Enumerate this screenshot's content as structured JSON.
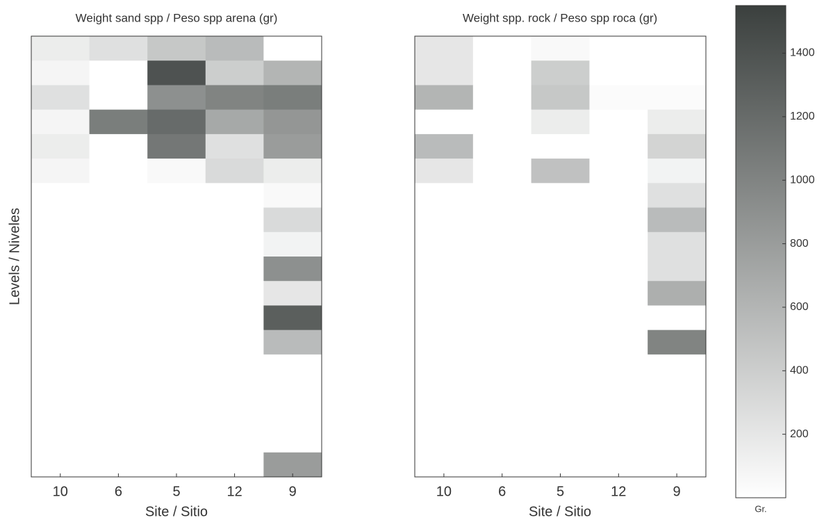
{
  "chart_data": [
    {
      "type": "heatmap",
      "title": "Weight sand spp / Peso spp arena (gr)",
      "xlabel": "Site / Sitio",
      "ylabel": "Levels / Niveles",
      "categories": [
        "10",
        "6",
        "5",
        "12",
        "9"
      ],
      "z": [
        [
          150,
          250,
          450,
          550,
          0
        ],
        [
          80,
          0,
          1400,
          400,
          600
        ],
        [
          250,
          0,
          900,
          1000,
          1050
        ],
        [
          80,
          1050,
          1200,
          700,
          850
        ],
        [
          150,
          0,
          1100,
          250,
          800
        ],
        [
          80,
          0,
          50,
          300,
          150
        ],
        [
          0,
          0,
          0,
          0,
          50
        ],
        [
          0,
          0,
          0,
          0,
          300
        ],
        [
          0,
          0,
          0,
          0,
          100
        ],
        [
          0,
          0,
          0,
          0,
          900
        ],
        [
          0,
          0,
          0,
          0,
          200
        ],
        [
          0,
          0,
          0,
          0,
          1300
        ],
        [
          0,
          0,
          0,
          0,
          550
        ],
        [
          0,
          0,
          0,
          0,
          0
        ],
        [
          0,
          0,
          0,
          0,
          0
        ],
        [
          0,
          0,
          0,
          0,
          0
        ],
        [
          0,
          0,
          0,
          0,
          0
        ],
        [
          0,
          0,
          0,
          0,
          800
        ]
      ]
    },
    {
      "type": "heatmap",
      "title": "Weight spp. rock / Peso spp roca (gr)",
      "xlabel": "Site / Sitio",
      "categories": [
        "10",
        "6",
        "5",
        "12",
        "9"
      ],
      "z": [
        [
          200,
          0,
          50,
          0,
          0
        ],
        [
          200,
          0,
          400,
          0,
          0
        ],
        [
          600,
          0,
          450,
          30,
          30
        ],
        [
          0,
          0,
          150,
          0,
          150
        ],
        [
          550,
          0,
          0,
          0,
          350
        ],
        [
          200,
          0,
          500,
          0,
          100
        ],
        [
          0,
          0,
          0,
          0,
          250
        ],
        [
          0,
          0,
          0,
          0,
          550
        ],
        [
          0,
          0,
          0,
          0,
          250
        ],
        [
          0,
          0,
          0,
          0,
          250
        ],
        [
          0,
          0,
          0,
          0,
          650
        ],
        [
          0,
          0,
          0,
          0,
          0
        ],
        [
          0,
          0,
          0,
          0,
          1000
        ],
        [
          0,
          0,
          0,
          0,
          0
        ],
        [
          0,
          0,
          0,
          0,
          0
        ],
        [
          0,
          0,
          0,
          0,
          0
        ],
        [
          0,
          0,
          0,
          0,
          0
        ],
        [
          0,
          0,
          0,
          0,
          0
        ]
      ]
    }
  ],
  "colorbar": {
    "lim": [
      0,
      1550
    ],
    "ticks": [
      200,
      400,
      600,
      800,
      1000,
      1200,
      1400
    ],
    "label": "Gr.",
    "low_color": "#ffffff",
    "high_color": "#3b403e"
  }
}
